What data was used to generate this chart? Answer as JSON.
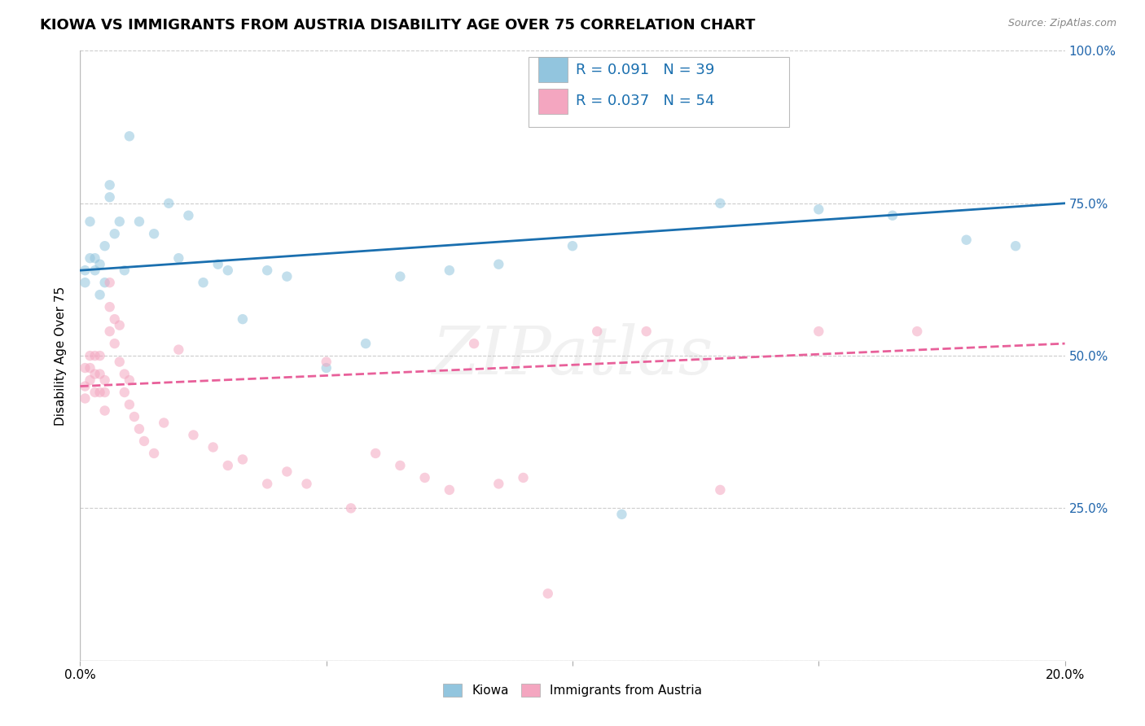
{
  "title": "KIOWA VS IMMIGRANTS FROM AUSTRIA DISABILITY AGE OVER 75 CORRELATION CHART",
  "source": "Source: ZipAtlas.com",
  "ylabel": "Disability Age Over 75",
  "legend_label1": "Kiowa",
  "legend_label2": "Immigrants from Austria",
  "R1": "0.091",
  "N1": "39",
  "R2": "0.037",
  "N2": "54",
  "color_blue": "#92c5de",
  "color_pink": "#f4a6c0",
  "color_blue_line": "#1a6faf",
  "color_pink_line": "#e8609a",
  "kiowa_x": [
    0.001,
    0.001,
    0.002,
    0.002,
    0.003,
    0.003,
    0.004,
    0.004,
    0.005,
    0.005,
    0.006,
    0.006,
    0.007,
    0.008,
    0.009,
    0.01,
    0.012,
    0.015,
    0.018,
    0.02,
    0.022,
    0.025,
    0.028,
    0.03,
    0.033,
    0.038,
    0.042,
    0.05,
    0.058,
    0.065,
    0.075,
    0.085,
    0.1,
    0.11,
    0.13,
    0.15,
    0.165,
    0.18,
    0.19
  ],
  "kiowa_y": [
    0.64,
    0.62,
    0.66,
    0.72,
    0.64,
    0.66,
    0.6,
    0.65,
    0.62,
    0.68,
    0.76,
    0.78,
    0.7,
    0.72,
    0.64,
    0.86,
    0.72,
    0.7,
    0.75,
    0.66,
    0.73,
    0.62,
    0.65,
    0.64,
    0.56,
    0.64,
    0.63,
    0.48,
    0.52,
    0.63,
    0.64,
    0.65,
    0.68,
    0.24,
    0.75,
    0.74,
    0.73,
    0.69,
    0.68
  ],
  "austria_x": [
    0.001,
    0.001,
    0.001,
    0.002,
    0.002,
    0.002,
    0.003,
    0.003,
    0.003,
    0.004,
    0.004,
    0.004,
    0.005,
    0.005,
    0.005,
    0.006,
    0.006,
    0.006,
    0.007,
    0.007,
    0.008,
    0.008,
    0.009,
    0.009,
    0.01,
    0.01,
    0.011,
    0.012,
    0.013,
    0.015,
    0.017,
    0.02,
    0.023,
    0.027,
    0.03,
    0.033,
    0.038,
    0.042,
    0.046,
    0.05,
    0.055,
    0.06,
    0.065,
    0.07,
    0.075,
    0.08,
    0.085,
    0.09,
    0.095,
    0.105,
    0.115,
    0.13,
    0.15,
    0.17
  ],
  "austria_y": [
    0.48,
    0.45,
    0.43,
    0.5,
    0.48,
    0.46,
    0.5,
    0.47,
    0.44,
    0.5,
    0.47,
    0.44,
    0.46,
    0.44,
    0.41,
    0.62,
    0.58,
    0.54,
    0.56,
    0.52,
    0.55,
    0.49,
    0.47,
    0.44,
    0.46,
    0.42,
    0.4,
    0.38,
    0.36,
    0.34,
    0.39,
    0.51,
    0.37,
    0.35,
    0.32,
    0.33,
    0.29,
    0.31,
    0.29,
    0.49,
    0.25,
    0.34,
    0.32,
    0.3,
    0.28,
    0.52,
    0.29,
    0.3,
    0.11,
    0.54,
    0.54,
    0.28,
    0.54,
    0.54
  ],
  "xmin": 0.0,
  "xmax": 0.2,
  "ymin": 0.0,
  "ymax": 1.0,
  "yticks": [
    0.0,
    0.25,
    0.5,
    0.75,
    1.0
  ],
  "ytick_labels_right": [
    "",
    "25.0%",
    "50.0%",
    "75.0%",
    "100.0%"
  ],
  "xticks": [
    0.0,
    0.05,
    0.1,
    0.15,
    0.2
  ],
  "xtick_labels": [
    "0.0%",
    "",
    "",
    "",
    "20.0%"
  ],
  "grid_color": "#cccccc",
  "bg_color": "#ffffff",
  "title_fontsize": 13,
  "axis_label_fontsize": 11,
  "tick_fontsize": 11,
  "marker_size": 80,
  "marker_alpha": 0.55
}
